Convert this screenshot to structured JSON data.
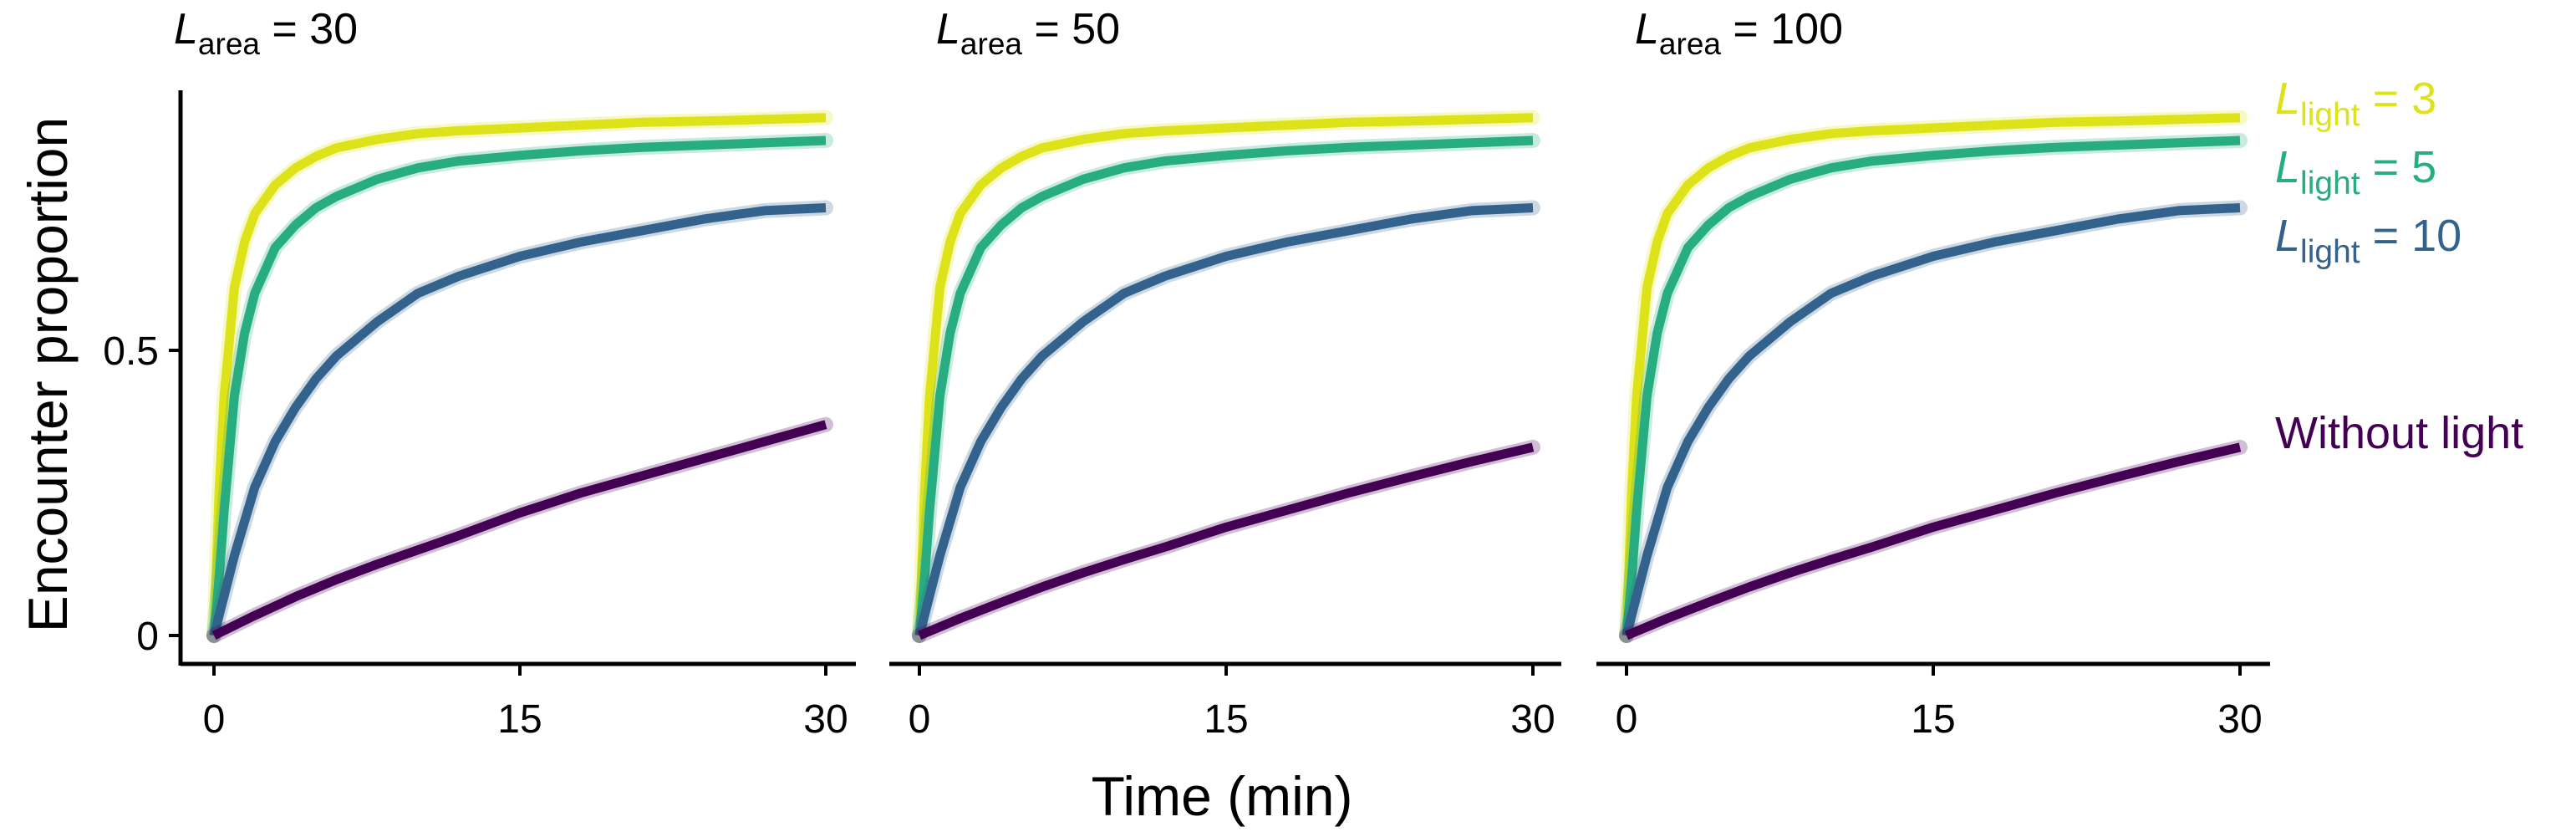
{
  "chart_data": [
    {
      "type": "line",
      "panel_title": {
        "symbol": "L",
        "subscript": "area",
        "text": " = 30"
      },
      "xlim": [
        0,
        30
      ],
      "ylim": [
        0,
        1
      ],
      "x_ticks": [
        "0",
        "15",
        "30"
      ],
      "y_ticks": [
        "0",
        "0.5"
      ],
      "series": [
        {
          "key": "light3",
          "color": "#DDE318",
          "x": [
            0,
            0.25,
            0.5,
            1,
            1.5,
            2,
            3,
            4,
            5,
            6,
            8,
            10,
            12,
            15,
            18,
            21,
            24,
            27,
            30
          ],
          "y": [
            0,
            0.25,
            0.42,
            0.61,
            0.69,
            0.74,
            0.79,
            0.82,
            0.84,
            0.855,
            0.87,
            0.88,
            0.885,
            0.89,
            0.895,
            0.9,
            0.902,
            0.905,
            0.908
          ]
        },
        {
          "key": "light5",
          "color": "#27AD81",
          "x": [
            0,
            0.25,
            0.5,
            1,
            1.5,
            2,
            3,
            4,
            5,
            6,
            8,
            10,
            12,
            15,
            18,
            21,
            24,
            27,
            30
          ],
          "y": [
            0,
            0.1,
            0.22,
            0.42,
            0.53,
            0.6,
            0.68,
            0.72,
            0.75,
            0.77,
            0.8,
            0.82,
            0.832,
            0.842,
            0.85,
            0.856,
            0.86,
            0.864,
            0.868
          ]
        },
        {
          "key": "light10",
          "color": "#33638D",
          "x": [
            0,
            0.5,
            1,
            2,
            3,
            4,
            5,
            6,
            8,
            10,
            12,
            15,
            18,
            21,
            24,
            27,
            30
          ],
          "y": [
            0,
            0.07,
            0.14,
            0.26,
            0.34,
            0.4,
            0.45,
            0.49,
            0.55,
            0.6,
            0.63,
            0.665,
            0.69,
            0.71,
            0.73,
            0.745,
            0.75
          ]
        },
        {
          "key": "nolight",
          "color": "#440154",
          "x": [
            0,
            2,
            4,
            6,
            8,
            10,
            12,
            15,
            18,
            21,
            24,
            27,
            30
          ],
          "y": [
            0,
            0.035,
            0.068,
            0.098,
            0.125,
            0.15,
            0.175,
            0.215,
            0.25,
            0.28,
            0.31,
            0.34,
            0.37
          ]
        }
      ]
    },
    {
      "type": "line",
      "panel_title": {
        "symbol": "L",
        "subscript": "area",
        "text": " = 50"
      },
      "xlim": [
        0,
        30
      ],
      "ylim": [
        0,
        1
      ],
      "x_ticks": [
        "0",
        "15",
        "30"
      ],
      "y_ticks": [],
      "series": [
        {
          "key": "light3",
          "color": "#DDE318",
          "x": [
            0,
            0.25,
            0.5,
            1,
            1.5,
            2,
            3,
            4,
            5,
            6,
            8,
            10,
            12,
            15,
            18,
            21,
            24,
            27,
            30
          ],
          "y": [
            0,
            0.25,
            0.42,
            0.61,
            0.69,
            0.74,
            0.79,
            0.82,
            0.84,
            0.855,
            0.87,
            0.88,
            0.885,
            0.89,
            0.895,
            0.9,
            0.902,
            0.905,
            0.908
          ]
        },
        {
          "key": "light5",
          "color": "#27AD81",
          "x": [
            0,
            0.25,
            0.5,
            1,
            1.5,
            2,
            3,
            4,
            5,
            6,
            8,
            10,
            12,
            15,
            18,
            21,
            24,
            27,
            30
          ],
          "y": [
            0,
            0.1,
            0.22,
            0.42,
            0.53,
            0.6,
            0.68,
            0.72,
            0.75,
            0.77,
            0.8,
            0.82,
            0.832,
            0.842,
            0.85,
            0.856,
            0.86,
            0.864,
            0.868
          ]
        },
        {
          "key": "light10",
          "color": "#33638D",
          "x": [
            0,
            0.5,
            1,
            2,
            3,
            4,
            5,
            6,
            8,
            10,
            12,
            15,
            18,
            21,
            24,
            27,
            30
          ],
          "y": [
            0,
            0.07,
            0.14,
            0.26,
            0.34,
            0.4,
            0.45,
            0.49,
            0.55,
            0.6,
            0.63,
            0.665,
            0.69,
            0.71,
            0.73,
            0.745,
            0.75
          ]
        },
        {
          "key": "nolight",
          "color": "#440154",
          "x": [
            0,
            2,
            4,
            6,
            8,
            10,
            12,
            15,
            18,
            21,
            24,
            27,
            30
          ],
          "y": [
            0,
            0.03,
            0.058,
            0.085,
            0.11,
            0.133,
            0.155,
            0.19,
            0.22,
            0.25,
            0.278,
            0.305,
            0.33
          ]
        }
      ]
    },
    {
      "type": "line",
      "panel_title": {
        "symbol": "L",
        "subscript": "area",
        "text": " = 100"
      },
      "xlim": [
        0,
        30
      ],
      "ylim": [
        0,
        1
      ],
      "x_ticks": [
        "0",
        "15",
        "30"
      ],
      "y_ticks": [],
      "series": [
        {
          "key": "light3",
          "color": "#DDE318",
          "x": [
            0,
            0.25,
            0.5,
            1,
            1.5,
            2,
            3,
            4,
            5,
            6,
            8,
            10,
            12,
            15,
            18,
            21,
            24,
            27,
            30
          ],
          "y": [
            0,
            0.25,
            0.42,
            0.61,
            0.69,
            0.74,
            0.79,
            0.82,
            0.84,
            0.855,
            0.87,
            0.88,
            0.885,
            0.89,
            0.895,
            0.9,
            0.902,
            0.905,
            0.908
          ]
        },
        {
          "key": "light5",
          "color": "#27AD81",
          "x": [
            0,
            0.25,
            0.5,
            1,
            1.5,
            2,
            3,
            4,
            5,
            6,
            8,
            10,
            12,
            15,
            18,
            21,
            24,
            27,
            30
          ],
          "y": [
            0,
            0.1,
            0.22,
            0.42,
            0.53,
            0.6,
            0.68,
            0.72,
            0.75,
            0.77,
            0.8,
            0.82,
            0.832,
            0.842,
            0.85,
            0.856,
            0.86,
            0.864,
            0.868
          ]
        },
        {
          "key": "light10",
          "color": "#33638D",
          "x": [
            0,
            0.5,
            1,
            2,
            3,
            4,
            5,
            6,
            8,
            10,
            12,
            15,
            18,
            21,
            24,
            27,
            30
          ],
          "y": [
            0,
            0.07,
            0.14,
            0.26,
            0.34,
            0.4,
            0.45,
            0.49,
            0.55,
            0.6,
            0.63,
            0.665,
            0.69,
            0.71,
            0.73,
            0.745,
            0.75
          ]
        },
        {
          "key": "nolight",
          "color": "#440154",
          "x": [
            0,
            2,
            4,
            6,
            8,
            10,
            12,
            15,
            18,
            21,
            24,
            27,
            30
          ],
          "y": [
            0,
            0.03,
            0.058,
            0.085,
            0.11,
            0.133,
            0.155,
            0.19,
            0.22,
            0.25,
            0.278,
            0.305,
            0.33
          ]
        }
      ]
    }
  ],
  "x_axis_label": "Time (min)",
  "y_axis_label": "Encounter proportion",
  "direct_labels": [
    {
      "series": "light3",
      "symbol": "L",
      "subscript": "light",
      "text": " = 3",
      "color": "#DDE318"
    },
    {
      "series": "light5",
      "symbol": "L",
      "subscript": "light",
      "text": " = 5",
      "color": "#27AD81"
    },
    {
      "series": "light10",
      "symbol": "L",
      "subscript": "light",
      "text": " = 10",
      "color": "#33638D"
    },
    {
      "series": "nolight",
      "symbol": "",
      "subscript": "",
      "text": "Without light",
      "color": "#440154"
    }
  ]
}
